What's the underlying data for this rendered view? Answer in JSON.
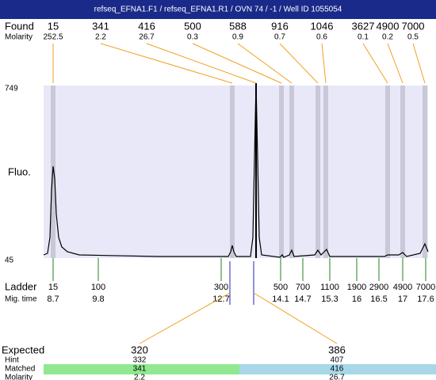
{
  "title": "refseq_EFNA1.F1 / refseq_EFNA1.R1 / OVN 74 / -1 / Well ID 1055054",
  "found": {
    "label": "Found",
    "molarity_label": "Molarity",
    "peaks": [
      {
        "size": 15,
        "molarity": 252.5
      },
      {
        "size": 341,
        "molarity": 2.2
      },
      {
        "size": 416,
        "molarity": 26.7
      },
      {
        "size": 500,
        "molarity": 0.3
      },
      {
        "size": 588,
        "molarity": 0.9
      },
      {
        "size": 916,
        "molarity": 0.7
      },
      {
        "size": 1046,
        "molarity": 0.6
      },
      {
        "size": 3627,
        "molarity": 0.1
      },
      {
        "size": 4900,
        "molarity": 0.2
      },
      {
        "size": 7000,
        "molarity": 0.5
      }
    ]
  },
  "fluo": {
    "label": "Fluo.",
    "max": 749,
    "min": 45
  },
  "ladder": {
    "label": "Ladder",
    "time_label": "Mig. time",
    "peaks": [
      {
        "size": 15,
        "time": 8.7
      },
      {
        "size": 100,
        "time": 9.8
      },
      {
        "size": 300,
        "time": 12.7
      },
      {
        "size": 500,
        "time": 14.1
      },
      {
        "size": 700,
        "time": 14.7
      },
      {
        "size": 1100,
        "time": 15.3
      },
      {
        "size": 1900,
        "time": 16
      },
      {
        "size": 2900,
        "time": 16.5
      },
      {
        "size": 4900,
        "time": 17
      },
      {
        "size": 7000,
        "time": 17.6
      }
    ]
  },
  "expected": {
    "label": "Expected",
    "hint_label": "Hint",
    "matched_label": "Matched",
    "molarity_label": "Molarity",
    "items": [
      {
        "size": 320,
        "hint": 332,
        "matched": 341,
        "molarity": 2.2
      },
      {
        "size": 386,
        "hint": 407,
        "matched": 416,
        "molarity": 26.7
      }
    ]
  }
}
